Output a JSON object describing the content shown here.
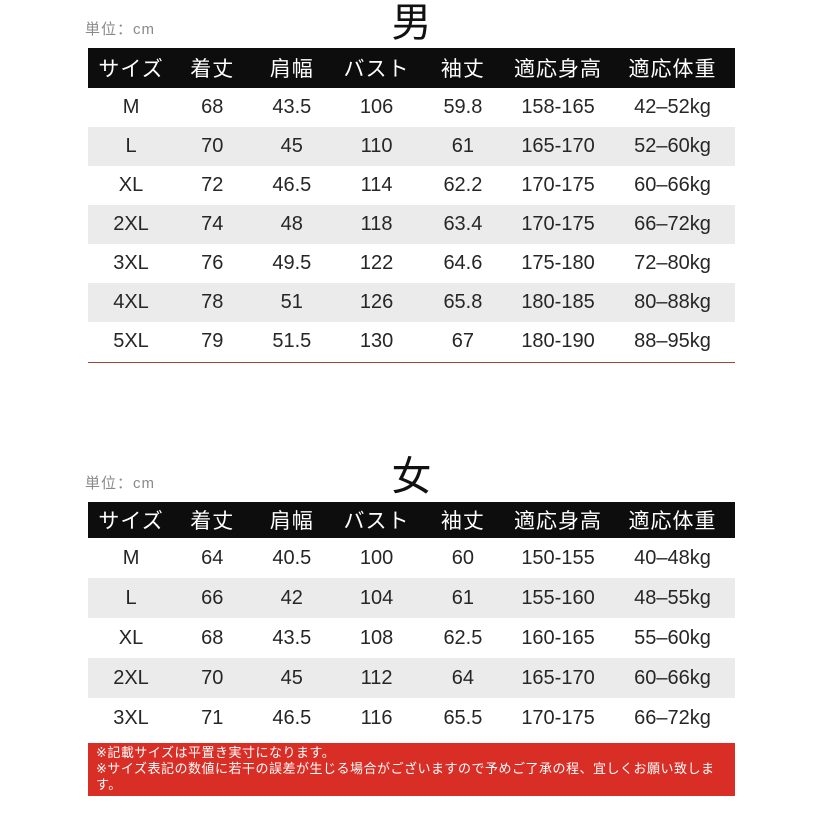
{
  "columns": [
    "サイズ",
    "着丈",
    "肩幅",
    "バスト",
    "袖丈",
    "適応身高",
    "適応体重"
  ],
  "men": {
    "title": "男",
    "unit_label": "単位：cm",
    "rows": [
      [
        "M",
        "68",
        "43.5",
        "106",
        "59.8",
        "158-165",
        "42–52kg"
      ],
      [
        "L",
        "70",
        "45",
        "110",
        "61",
        "165-170",
        "52–60kg"
      ],
      [
        "XL",
        "72",
        "46.5",
        "114",
        "62.2",
        "170-175",
        "60–66kg"
      ],
      [
        "2XL",
        "74",
        "48",
        "118",
        "63.4",
        "170-175",
        "66–72kg"
      ],
      [
        "3XL",
        "76",
        "49.5",
        "122",
        "64.6",
        "175-180",
        "72–80kg"
      ],
      [
        "4XL",
        "78",
        "51",
        "126",
        "65.8",
        "180-185",
        "80–88kg"
      ],
      [
        "5XL",
        "79",
        "51.5",
        "130",
        "67",
        "180-190",
        "88–95kg"
      ]
    ]
  },
  "women": {
    "title": "女",
    "unit_label": "単位：cm",
    "rows": [
      [
        "M",
        "64",
        "40.5",
        "100",
        "60",
        "150-155",
        "40–48kg"
      ],
      [
        "L",
        "66",
        "42",
        "104",
        "61",
        "155-160",
        "48–55kg"
      ],
      [
        "XL",
        "68",
        "43.5",
        "108",
        "62.5",
        "160-165",
        "55–60kg"
      ],
      [
        "2XL",
        "70",
        "45",
        "112",
        "64",
        "165-170",
        "60–66kg"
      ],
      [
        "3XL",
        "71",
        "46.5",
        "116",
        "65.5",
        "170-175",
        "66–72kg"
      ]
    ]
  },
  "notice": {
    "line1": "※記載サイズは平置き実寸になります。",
    "line2": "※サイズ表記の数値に若干の誤差が生じる場合がございますので予めご了承の程、宜しくお願い致します。"
  },
  "colors": {
    "header_bg": "#0d0d0d",
    "header_text": "#ffffff",
    "row_stripe": "#ebebeb",
    "divider_line": "#9c4733",
    "notice_bg": "#d92e26",
    "notice_text": "#ffffff",
    "unit_text": "#8a8a8a"
  }
}
